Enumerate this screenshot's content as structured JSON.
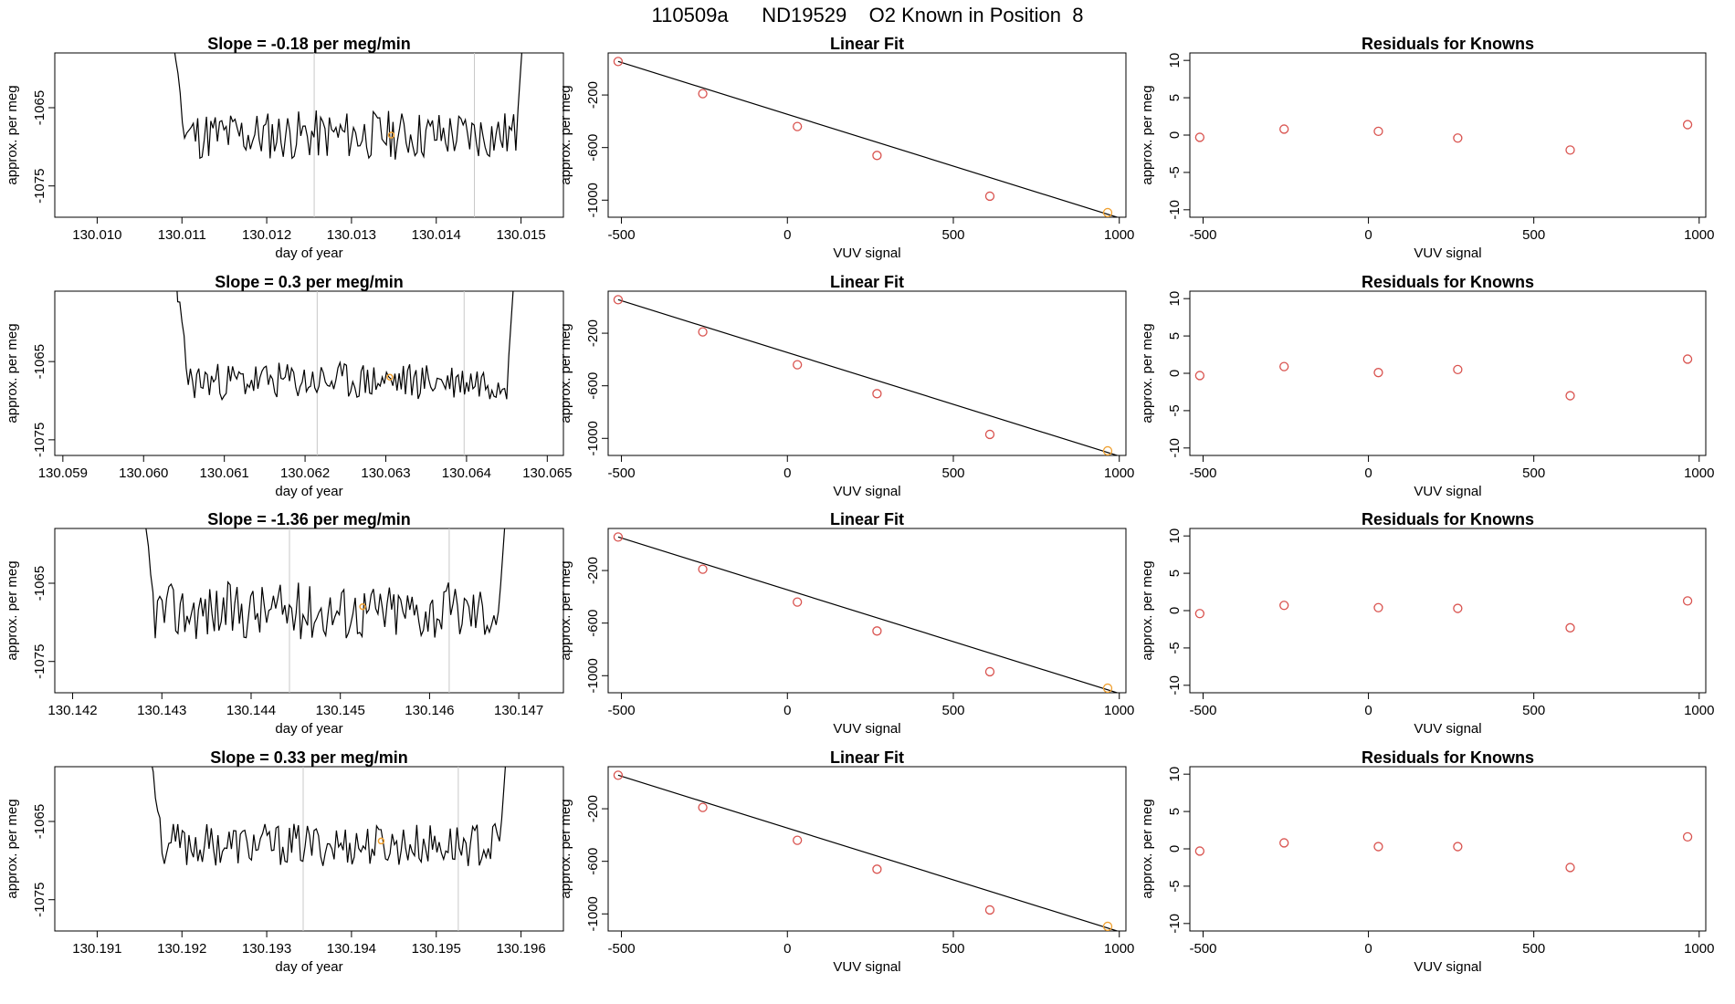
{
  "title": "110509a      ND19529    O2 Known in Position  8",
  "colors": {
    "line": "#000000",
    "point": "#d9534f",
    "highlight": "#f0a030",
    "vline": "#c8c8c8"
  },
  "chart_data": [
    {
      "type": "line",
      "panel": "time",
      "row": 0,
      "title": "Slope =  -0.18  per meg/min",
      "xlabel": "day of year",
      "ylabel": "approx. per meg",
      "xlim": [
        130.0095,
        130.0155
      ],
      "ylim": [
        -1079,
        -1058
      ],
      "xticks": [
        "130.010",
        "130.011",
        "130.012",
        "130.013",
        "130.014",
        "130.015"
      ],
      "yticks": [
        "-1065",
        "-1075"
      ],
      "vlines": [
        130.01256,
        130.01445
      ],
      "highlight": [
        130.01347,
        -1068.5
      ],
      "trace": {
        "x_start": 130.01072,
        "x_end": 130.01512,
        "baseline": -1068.5,
        "noise": 2.0,
        "edge_top": -1040,
        "seed": 11
      }
    },
    {
      "type": "scatter",
      "panel": "fit",
      "row": 0,
      "title": "Linear Fit",
      "xlabel": "VUV signal",
      "ylabel": "approx. per meg",
      "xlim": [
        -540,
        1020
      ],
      "ylim": [
        -1130,
        120
      ],
      "xticks": [
        "-500",
        "0",
        "500",
        "1000"
      ],
      "yticks": [
        "-200",
        "-600",
        "-1000"
      ],
      "points": [
        [
          -510,
          55
        ],
        [
          -255,
          -190
        ],
        [
          30,
          -440
        ],
        [
          270,
          -660
        ],
        [
          610,
          -970
        ],
        [
          965,
          -1095
        ]
      ],
      "fit_line": [
        [
          -510,
          55
        ],
        [
          1000,
          -1135
        ]
      ],
      "highlight_index": 5
    },
    {
      "type": "scatter",
      "panel": "residuals",
      "row": 0,
      "title": "Residuals for Knowns",
      "xlabel": "VUV signal",
      "ylabel": "approx. per meg",
      "xlim": [
        -540,
        1020
      ],
      "ylim": [
        -11,
        11
      ],
      "xticks": [
        "-500",
        "0",
        "500",
        "1000"
      ],
      "yticks": [
        "10",
        "5",
        "0",
        "-5",
        "-10"
      ],
      "points": [
        [
          -510,
          -0.3
        ],
        [
          -255,
          0.8
        ],
        [
          30,
          0.5
        ],
        [
          270,
          -0.4
        ],
        [
          610,
          -2.0
        ],
        [
          965,
          1.4
        ]
      ]
    },
    {
      "type": "line",
      "panel": "time",
      "row": 1,
      "title": "Slope =  0.3  per meg/min",
      "xlabel": "day of year",
      "ylabel": "approx. per meg",
      "xlim": [
        130.0589,
        130.0652
      ],
      "ylim": [
        -1077,
        -1056
      ],
      "xticks": [
        "130.059",
        "130.060",
        "130.061",
        "130.062",
        "130.063",
        "130.064",
        "130.065"
      ],
      "yticks": [
        "-1065",
        "-1075"
      ],
      "vlines": [
        130.06215,
        130.06397
      ],
      "highlight": [
        130.06305,
        -1067
      ],
      "trace": {
        "x_start": 130.06024,
        "x_end": 130.06468,
        "baseline": -1067.5,
        "noise": 1.5,
        "edge_top": -1040,
        "seed": 23
      }
    },
    {
      "type": "scatter",
      "panel": "fit",
      "row": 1,
      "title": "Linear Fit",
      "xlabel": "VUV signal",
      "ylabel": "approx. per meg",
      "xlim": [
        -540,
        1020
      ],
      "ylim": [
        -1130,
        120
      ],
      "xticks": [
        "-500",
        "0",
        "500",
        "1000"
      ],
      "yticks": [
        "-200",
        "-600",
        "-1000"
      ],
      "points": [
        [
          -510,
          55
        ],
        [
          -255,
          -190
        ],
        [
          30,
          -440
        ],
        [
          270,
          -660
        ],
        [
          610,
          -970
        ],
        [
          965,
          -1095
        ]
      ],
      "fit_line": [
        [
          -510,
          55
        ],
        [
          1000,
          -1135
        ]
      ],
      "highlight_index": 5
    },
    {
      "type": "scatter",
      "panel": "residuals",
      "row": 1,
      "title": "Residuals for Knowns",
      "xlabel": "VUV signal",
      "ylabel": "approx. per meg",
      "xlim": [
        -540,
        1020
      ],
      "ylim": [
        -11,
        11
      ],
      "xticks": [
        "-500",
        "0",
        "500",
        "1000"
      ],
      "yticks": [
        "10",
        "5",
        "0",
        "-5",
        "-10"
      ],
      "points": [
        [
          -510,
          -0.3
        ],
        [
          -255,
          0.9
        ],
        [
          30,
          0.1
        ],
        [
          270,
          0.5
        ],
        [
          610,
          -3.0
        ],
        [
          965,
          1.9
        ]
      ]
    },
    {
      "type": "line",
      "panel": "time",
      "row": 2,
      "title": "Slope =  -1.36  per meg/min",
      "xlabel": "day of year",
      "ylabel": "approx. per meg",
      "xlim": [
        130.1418,
        130.1475
      ],
      "ylim": [
        -1079,
        -1058
      ],
      "xticks": [
        "130.142",
        "130.143",
        "130.144",
        "130.145",
        "130.146",
        "130.147"
      ],
      "yticks": [
        "-1065",
        "-1075"
      ],
      "vlines": [
        130.14443,
        130.14622
      ],
      "highlight": [
        130.14525,
        -1068
      ],
      "trace": {
        "x_start": 130.14262,
        "x_end": 130.14695,
        "baseline": -1068.5,
        "noise": 2.3,
        "edge_top": -1040,
        "seed": 37
      }
    },
    {
      "type": "scatter",
      "panel": "fit",
      "row": 2,
      "title": "Linear Fit",
      "xlabel": "VUV signal",
      "ylabel": "approx. per meg",
      "xlim": [
        -540,
        1020
      ],
      "ylim": [
        -1130,
        120
      ],
      "xticks": [
        "-500",
        "0",
        "500",
        "1000"
      ],
      "yticks": [
        "-200",
        "-600",
        "-1000"
      ],
      "points": [
        [
          -510,
          55
        ],
        [
          -255,
          -190
        ],
        [
          30,
          -440
        ],
        [
          270,
          -660
        ],
        [
          610,
          -970
        ],
        [
          965,
          -1095
        ]
      ],
      "fit_line": [
        [
          -510,
          55
        ],
        [
          1000,
          -1135
        ]
      ],
      "highlight_index": 5
    },
    {
      "type": "scatter",
      "panel": "residuals",
      "row": 2,
      "title": "Residuals for Knowns",
      "xlabel": "VUV signal",
      "ylabel": "approx. per meg",
      "xlim": [
        -540,
        1020
      ],
      "ylim": [
        -11,
        11
      ],
      "xticks": [
        "-500",
        "0",
        "500",
        "1000"
      ],
      "yticks": [
        "10",
        "5",
        "0",
        "-5",
        "-10"
      ],
      "points": [
        [
          -510,
          -0.4
        ],
        [
          -255,
          0.7
        ],
        [
          30,
          0.4
        ],
        [
          270,
          0.3
        ],
        [
          610,
          -2.3
        ],
        [
          965,
          1.3
        ]
      ]
    },
    {
      "type": "line",
      "panel": "time",
      "row": 3,
      "title": "Slope =  0.33  per meg/min",
      "xlabel": "day of year",
      "ylabel": "approx. per meg",
      "xlim": [
        130.1905,
        130.1965
      ],
      "ylim": [
        -1079,
        -1058
      ],
      "xticks": [
        "130.191",
        "130.192",
        "130.193",
        "130.194",
        "130.195",
        "130.196"
      ],
      "yticks": [
        "-1065",
        "-1075"
      ],
      "vlines": [
        130.19343,
        130.19526
      ],
      "highlight": [
        130.19435,
        -1067.5
      ],
      "trace": {
        "x_start": 130.19145,
        "x_end": 130.19593,
        "baseline": -1068,
        "noise": 1.7,
        "edge_top": -1040,
        "seed": 53
      }
    },
    {
      "type": "scatter",
      "panel": "fit",
      "row": 3,
      "title": "Linear Fit",
      "xlabel": "VUV signal",
      "ylabel": "approx. per meg",
      "xlim": [
        -540,
        1020
      ],
      "ylim": [
        -1130,
        120
      ],
      "xticks": [
        "-500",
        "0",
        "500",
        "1000"
      ],
      "yticks": [
        "-200",
        "-600",
        "-1000"
      ],
      "points": [
        [
          -510,
          55
        ],
        [
          -255,
          -190
        ],
        [
          30,
          -440
        ],
        [
          270,
          -660
        ],
        [
          610,
          -970
        ],
        [
          965,
          -1095
        ]
      ],
      "fit_line": [
        [
          -510,
          55
        ],
        [
          1000,
          -1135
        ]
      ],
      "highlight_index": 5
    },
    {
      "type": "scatter",
      "panel": "residuals",
      "row": 3,
      "title": "Residuals for Knowns",
      "xlabel": "VUV signal",
      "ylabel": "approx. per meg",
      "xlim": [
        -540,
        1020
      ],
      "ylim": [
        -11,
        11
      ],
      "xticks": [
        "-500",
        "0",
        "500",
        "1000"
      ],
      "yticks": [
        "10",
        "5",
        "0",
        "-5",
        "-10"
      ],
      "points": [
        [
          -510,
          -0.3
        ],
        [
          -255,
          0.8
        ],
        [
          30,
          0.3
        ],
        [
          270,
          0.3
        ],
        [
          610,
          -2.5
        ],
        [
          965,
          1.6
        ]
      ]
    }
  ]
}
